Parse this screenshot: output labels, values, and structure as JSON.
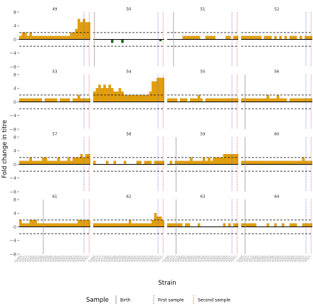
{
  "chart_data": {
    "type": "bar",
    "xlabel": "Strain",
    "ylabel": "Fold change in titre",
    "ylim": [
      -8,
      8
    ],
    "yticks": [
      -8,
      -4,
      0,
      4,
      8
    ],
    "yticklabels": [
      "−8",
      "−4",
      "0",
      "4",
      "8"
    ],
    "threshold_lines": [
      2,
      -2
    ],
    "n_strains": 28,
    "strain_labels": [
      "A/1968",
      "A/1972",
      "A/1975",
      "A/1977",
      "A/1979",
      "A/1982",
      "A/1985",
      "A/1987",
      "A/1989",
      "A/1992",
      "A/1993",
      "A/1995",
      "A/1996",
      "A/1997",
      "A/1999",
      "A/2000",
      "A/2002",
      "A/2003",
      "A/2004",
      "A/2005",
      "A/2006",
      "A/2007",
      "A/2008",
      "A/2009",
      "A/2010",
      "A/2011",
      "A/2012",
      "A/2013"
    ],
    "bar_color": "#E69F00",
    "negative_bar_color": "#1B6B1B",
    "legend": {
      "title": "Sample",
      "entries": [
        {
          "label": "Birth",
          "color": "#9a9a9a",
          "style": "solid"
        },
        {
          "label": "First sample",
          "color": "#6666dd",
          "style": "dotted"
        },
        {
          "label": "Second sample",
          "color": "#e05050",
          "style": "dotted"
        }
      ],
      "position": "bottom"
    },
    "panels": [
      {
        "id": "49",
        "birth": null,
        "first": 25,
        "second": 27,
        "values": [
          1,
          2,
          2,
          1,
          2,
          1,
          1,
          1,
          1,
          1,
          1,
          1,
          1,
          1,
          1,
          1,
          1,
          1,
          1,
          1,
          2,
          2,
          3,
          6,
          5,
          6,
          5,
          5
        ]
      },
      {
        "id": "50",
        "birth": 0,
        "first": 25,
        "second": 27,
        "values": [
          0,
          0,
          0,
          0,
          0,
          0,
          0,
          -1,
          0,
          0,
          0,
          -1,
          0,
          0,
          0,
          0,
          0,
          0,
          0,
          0,
          0,
          0,
          0,
          0,
          0,
          0,
          -0.5,
          0
        ]
      },
      {
        "id": "51",
        "birth": 2,
        "first": 25,
        "second": 27,
        "values": [
          0,
          0,
          0,
          0,
          0,
          0,
          1,
          1,
          1,
          1,
          1,
          1,
          1,
          0,
          0,
          1,
          1,
          1,
          1,
          0,
          0,
          0,
          0,
          1,
          1,
          0,
          1,
          1
        ]
      },
      {
        "id": "52",
        "birth": null,
        "first": 25,
        "second": 27,
        "values": [
          1,
          1,
          1,
          1,
          1,
          1,
          1,
          1,
          0,
          1,
          1,
          1,
          0,
          1,
          0,
          1,
          0,
          1,
          0,
          1,
          1,
          1,
          0,
          1,
          0,
          1,
          1,
          1
        ]
      },
      {
        "id": "53",
        "birth": null,
        "first": 25,
        "second": 27,
        "values": [
          1,
          1,
          1,
          1,
          1,
          1,
          1,
          1,
          1,
          0,
          1,
          1,
          1,
          1,
          1,
          0,
          1,
          1,
          1,
          1,
          0,
          1,
          1,
          2,
          1,
          1,
          1,
          1
        ]
      },
      {
        "id": "54",
        "birth": null,
        "first": 25,
        "second": 27,
        "values": [
          3,
          4,
          5,
          4,
          5,
          4,
          5,
          4,
          3,
          3,
          4,
          3,
          2,
          2,
          2,
          2,
          2,
          2,
          2,
          2,
          2,
          2,
          3,
          6,
          6,
          7,
          7,
          7
        ]
      },
      {
        "id": "55",
        "birth": null,
        "first": 25,
        "second": 27,
        "values": [
          1,
          1,
          1,
          1,
          0,
          1,
          1,
          1,
          0,
          1,
          1,
          1,
          2,
          1,
          0,
          1,
          1,
          1,
          1,
          1,
          1,
          1,
          1,
          1,
          1,
          1,
          1,
          1
        ]
      },
      {
        "id": "56",
        "birth": 1,
        "first": 25,
        "second": 27,
        "values": [
          1,
          1,
          1,
          1,
          1,
          1,
          1,
          1,
          1,
          1,
          2,
          1,
          1,
          1,
          2,
          1,
          1,
          1,
          0,
          1,
          1,
          1,
          1,
          1,
          1,
          1,
          1,
          1
        ]
      },
      {
        "id": "57",
        "birth": null,
        "first": 25,
        "second": 27,
        "values": [
          1,
          1,
          1,
          1,
          2,
          1,
          1,
          1,
          1,
          2,
          2,
          1,
          1,
          1,
          1,
          2,
          1,
          1,
          1,
          2,
          1,
          2,
          2,
          2,
          3,
          2,
          3,
          3
        ]
      },
      {
        "id": "58",
        "birth": null,
        "first": 25,
        "second": 27,
        "values": [
          1,
          0,
          0,
          0,
          0,
          1,
          0,
          0,
          1,
          0,
          0,
          0,
          1,
          0,
          0,
          0,
          0,
          1,
          1,
          0,
          1,
          1,
          1,
          0,
          1,
          1,
          1,
          1
        ]
      },
      {
        "id": "59",
        "birth": 3,
        "first": 25,
        "second": 27,
        "values": [
          0,
          1,
          0,
          1,
          1,
          1,
          1,
          1,
          1,
          2,
          1,
          1,
          1,
          1,
          2,
          1,
          2,
          1,
          2,
          2,
          2,
          2,
          3,
          3,
          3,
          3,
          3,
          3
        ]
      },
      {
        "id": "60",
        "birth": 1,
        "first": 25,
        "second": 27,
        "values": [
          1,
          1,
          1,
          1,
          1,
          1,
          1,
          1,
          1,
          1,
          1,
          1,
          1,
          1,
          1,
          1,
          1,
          1,
          1,
          1,
          1,
          1,
          1,
          1,
          2,
          1,
          1,
          1
        ]
      },
      {
        "id": "61",
        "birth": 9,
        "first": 25,
        "second": 27,
        "values": [
          2,
          1,
          1,
          1,
          2,
          2,
          2,
          1,
          1,
          1,
          1,
          1,
          1,
          1,
          1,
          1,
          1,
          1,
          1,
          1,
          1,
          1,
          1,
          2,
          2,
          2,
          2,
          2
        ]
      },
      {
        "id": "62",
        "birth": null,
        "first": 25,
        "second": 27,
        "values": [
          1,
          1,
          1,
          1,
          1,
          1,
          1,
          1,
          1,
          1,
          1,
          1,
          1,
          1,
          2,
          1,
          1,
          1,
          1,
          1,
          1,
          1,
          1,
          2,
          4,
          3,
          3,
          2
        ]
      },
      {
        "id": "63",
        "birth": 3,
        "first": 25,
        "second": 27,
        "values": [
          1,
          1,
          1,
          1,
          1,
          1,
          0,
          1,
          1,
          0,
          0,
          0,
          1,
          0,
          0,
          0,
          0,
          0,
          0,
          0,
          0,
          0,
          1,
          0,
          1,
          0,
          1,
          1
        ]
      },
      {
        "id": "64",
        "birth": 1,
        "first": 25,
        "second": 27,
        "values": [
          1,
          1,
          1,
          1,
          1,
          1,
          0,
          0,
          0,
          0,
          1,
          0,
          0,
          1,
          0,
          0,
          1,
          0,
          0,
          1,
          1,
          1,
          0,
          0,
          1,
          1,
          1,
          1
        ]
      }
    ]
  }
}
